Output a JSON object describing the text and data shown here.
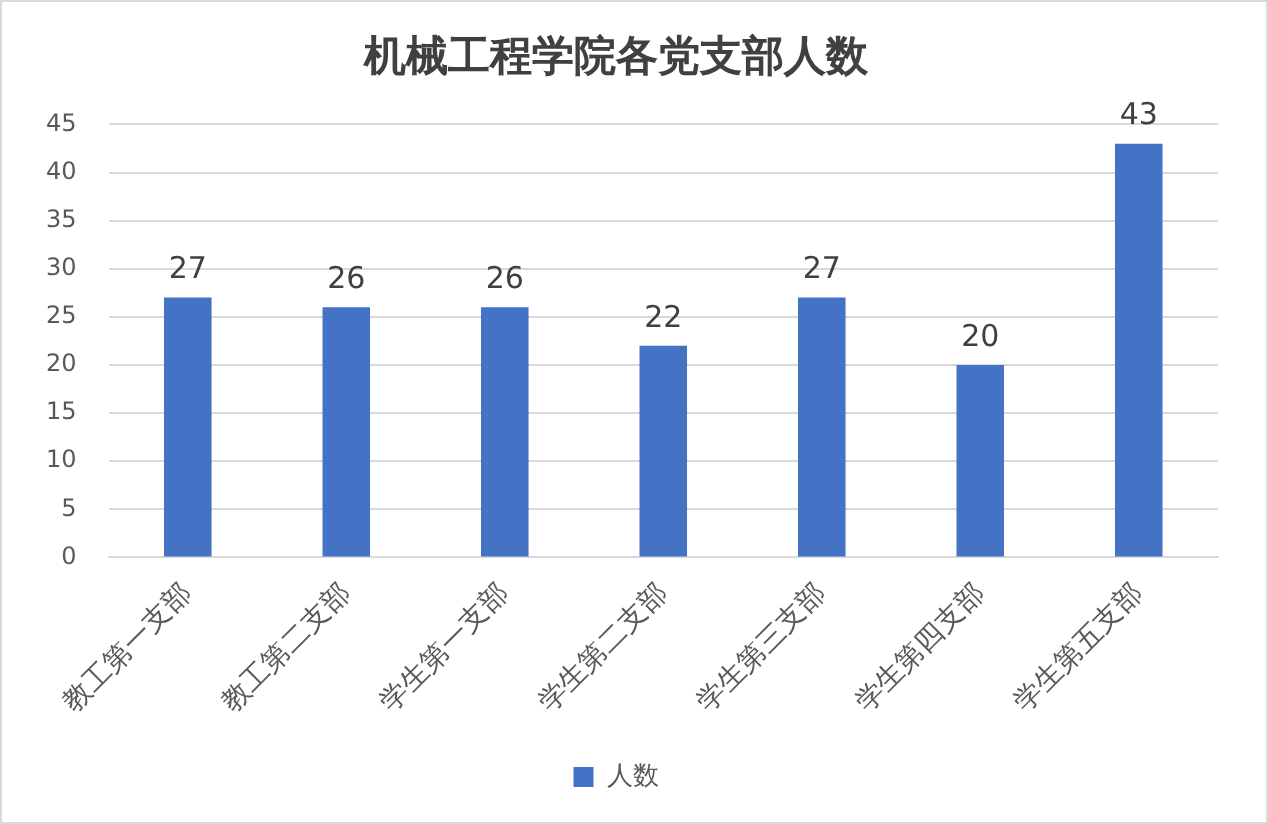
{
  "chart_data": {
    "type": "bar",
    "title": "机械工程学院各党支部人数",
    "categories": [
      "教工第一支部",
      "教工第二支部",
      "学生第一支部",
      "学生第二支部",
      "学生第三支部",
      "学生第四支部",
      "学生第五支部"
    ],
    "series": [
      {
        "name": "人数",
        "color": "#4472c4",
        "values": [
          27,
          26,
          26,
          22,
          27,
          20,
          43
        ]
      }
    ],
    "ylim": [
      0,
      45
    ],
    "yticks": [
      0,
      5,
      10,
      15,
      20,
      25,
      30,
      35,
      40,
      45
    ],
    "grid": "y",
    "legend": "bottom",
    "data_labels": true
  }
}
